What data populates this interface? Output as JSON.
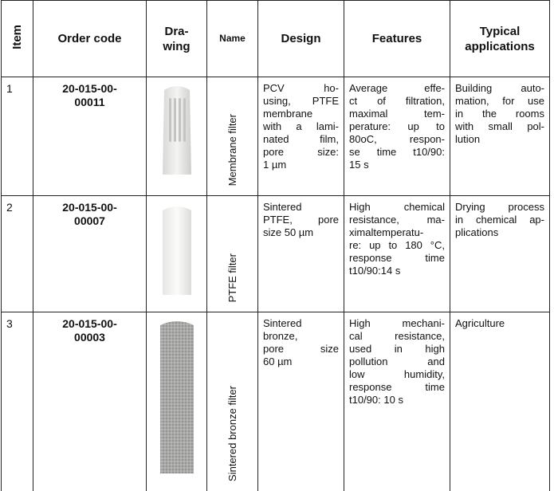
{
  "table": {
    "header": [
      [
        "Item"
      ],
      [
        "Order code"
      ],
      [
        "Dra-",
        "wing"
      ],
      [
        "Name"
      ],
      [
        "Design"
      ],
      [
        "Features"
      ],
      [
        "Typical",
        "applications"
      ]
    ],
    "rows": [
      {
        "item": "1",
        "order_code": [
          "20-015-00-",
          "00011"
        ],
        "name": "Membrane filter",
        "design": [
          "PCV ho-",
          "using, PTFE",
          "membrane",
          "with a lami-",
          "nated film,",
          "pore size:",
          "1 µm"
        ],
        "features": [
          "Average effe-",
          "ct of filtration,",
          "maximal tem-",
          "perature: up to",
          "80oC, respon-",
          "se time t10/90:",
          "15 s"
        ],
        "applications": [
          "Building auto-",
          "mation, for use",
          "in the rooms",
          "with small pol-",
          "lution"
        ]
      },
      {
        "item": "2",
        "order_code": [
          "20-015-00-",
          "00007"
        ],
        "name": "PTFE filter",
        "design": [
          "Sintered",
          "PTFE, pore",
          "size 50 µm"
        ],
        "features": [
          "High chemical",
          "resistance, ma-",
          "ximaltemperatu-",
          "re: up to 180 °C,",
          "response time",
          "t10/90:14 s"
        ],
        "applications": [
          "Drying process",
          "in chemical ap-",
          "plications"
        ]
      },
      {
        "item": "3",
        "order_code": [
          "20-015-00-",
          "00003"
        ],
        "name": "Sintered bronze filter",
        "design": [
          "Sintered",
          "bronze,",
          "pore size",
          "60 µm"
        ],
        "features": [
          "High mechani-",
          "cal resistance,",
          "used in high",
          "pollution and",
          "low humidity,",
          "response time",
          "t10/90: 10 s"
        ],
        "applications": [
          "Agriculture"
        ]
      }
    ]
  }
}
